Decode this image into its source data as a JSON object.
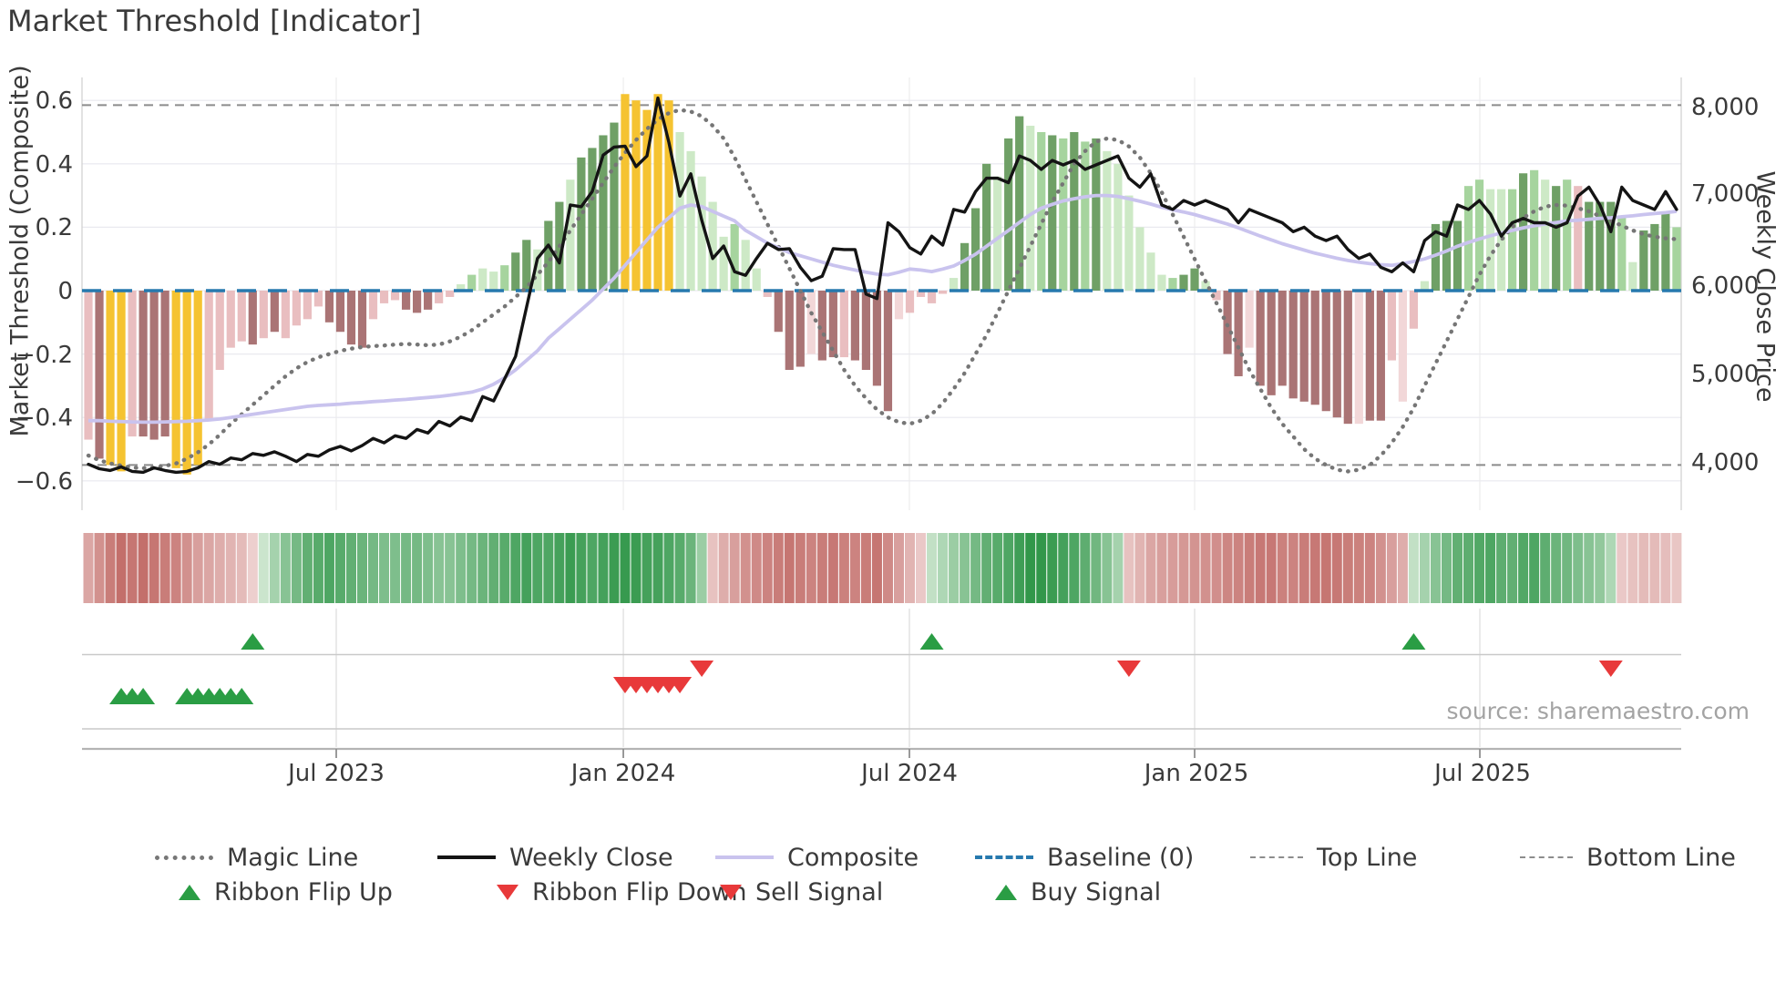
{
  "title": "Market Threshold [Indicator]",
  "source": "source: sharemaestro.com",
  "axes": {
    "left_label": "Market Threshold (Composite)",
    "right_label": "Weekly Close Price",
    "left_ticks": [
      "0.6",
      "0.4",
      "0.2",
      "0",
      "−0.2",
      "−0.4",
      "−0.6"
    ],
    "right_ticks": [
      "8,000",
      "7,000",
      "6,000",
      "5,000",
      "4,000"
    ],
    "x_ticks": [
      "Jul 2023",
      "Jan 2024",
      "Jul 2024",
      "Jan 2025",
      "Jul 2025"
    ]
  },
  "legend": {
    "magic_line": "Magic Line",
    "weekly_close": "Weekly Close",
    "composite": "Composite",
    "baseline": "Baseline (0)",
    "top_line": "Top Line",
    "bottom_line": "Bottom Line",
    "ribbon_flip_up": "Ribbon Flip Up",
    "ribbon_flip_down": "Ribbon Flip Down",
    "sell_signal": "Sell Signal",
    "buy_signal": "Buy Signal"
  },
  "colors": {
    "weekly_close": "#141414",
    "composite": "#c9c3ee",
    "magic_line": "#767676",
    "baseline": "#2679ae",
    "ref_dashed": "#8c8c8c",
    "buy_green": "#2a9d44",
    "sell_red": "#e8393a",
    "bar_palette": {
      "p": "#e9bec0",
      "d": "#aa7475",
      "y": "#f5c331",
      "P": "#f2d7d8",
      "g": "#6fa066",
      "l": "#a6d49e",
      "L": "#cde9c6"
    },
    "ribbon_green_strong": "#289242",
    "ribbon_red_strong": "#ba5a56"
  },
  "chart_data": {
    "type": "combo-bar-line-weekly",
    "weeks_n": 146,
    "x_tick_labels": [
      "Jul 2023",
      "Jan 2024",
      "Jul 2024",
      "Jan 2025",
      "Jul 2025"
    ],
    "x_tick_weeks": [
      22.63,
      48.84,
      74.96,
      101.0,
      127.04
    ],
    "ylim_left": [
      -0.65,
      0.68
    ],
    "right_axis_ticks": [
      8000,
      7000,
      6000,
      5000,
      4000
    ],
    "reference_lines": {
      "baseline": 0,
      "top_line": 0.585,
      "bottom_line": -0.55
    },
    "bars": {
      "name": "Market Threshold composite histogram",
      "values": [
        -0.47,
        -0.53,
        -0.55,
        -0.57,
        -0.46,
        -0.46,
        -0.47,
        -0.46,
        -0.56,
        -0.58,
        -0.55,
        -0.41,
        -0.25,
        -0.18,
        -0.16,
        -0.17,
        -0.15,
        -0.13,
        -0.15,
        -0.11,
        -0.09,
        -0.05,
        -0.1,
        -0.13,
        -0.17,
        -0.18,
        -0.09,
        -0.04,
        -0.03,
        -0.06,
        -0.07,
        -0.06,
        -0.04,
        -0.02,
        0.02,
        0.05,
        0.07,
        0.06,
        0.08,
        0.12,
        0.16,
        0.13,
        0.22,
        0.28,
        0.35,
        0.42,
        0.45,
        0.49,
        0.53,
        0.62,
        0.6,
        0.57,
        0.62,
        0.6,
        0.5,
        0.44,
        0.36,
        0.28,
        0.17,
        0.21,
        0.16,
        0.07,
        -0.02,
        -0.13,
        -0.25,
        -0.24,
        -0.2,
        -0.22,
        -0.21,
        -0.21,
        -0.22,
        -0.25,
        -0.3,
        -0.38,
        -0.09,
        -0.07,
        -0.02,
        -0.04,
        -0.01,
        0.04,
        0.15,
        0.26,
        0.4,
        0.36,
        0.48,
        0.55,
        0.52,
        0.5,
        0.49,
        0.48,
        0.5,
        0.47,
        0.48,
        0.44,
        0.4,
        0.3,
        0.2,
        0.12,
        0.05,
        0.04,
        0.05,
        0.07,
        0.03,
        -0.03,
        -0.2,
        -0.27,
        -0.18,
        -0.3,
        -0.33,
        -0.3,
        -0.34,
        -0.35,
        -0.36,
        -0.38,
        -0.4,
        -0.42,
        -0.42,
        -0.41,
        -0.41,
        -0.22,
        -0.35,
        -0.12,
        0.03,
        0.21,
        0.22,
        0.22,
        0.33,
        0.35,
        0.32,
        0.32,
        0.32,
        0.37,
        0.38,
        0.35,
        0.33,
        0.35,
        0.33,
        0.28,
        0.28,
        0.28,
        0.23,
        0.09,
        0.19,
        0.21,
        0.25,
        0.2
      ],
      "color_codes": "pdyypdddyyyppppdpdppppddddpppdddppLlLLlggLggLggggyyyyyLLLLLlLLpdddPddpddddPppppLgggLggLlglglgLLLLLLlggLpddPdddddddddPddpPpLgggllLLlglLglJggglLgggl"
    },
    "lines": {
      "weekly_close_price": [
        3990,
        3940,
        3920,
        3960,
        3910,
        3900,
        3950,
        3920,
        3900,
        3910,
        3950,
        4020,
        3990,
        4060,
        4040,
        4110,
        4090,
        4130,
        4080,
        4020,
        4100,
        4080,
        4150,
        4190,
        4140,
        4200,
        4280,
        4230,
        4310,
        4280,
        4380,
        4340,
        4470,
        4420,
        4520,
        4480,
        4750,
        4700,
        4950,
        5200,
        5750,
        6300,
        6450,
        6250,
        6900,
        6880,
        7050,
        7460,
        7550,
        7560,
        7330,
        7450,
        8100,
        7600,
        7000,
        7250,
        6730,
        6300,
        6440,
        6150,
        6110,
        6300,
        6470,
        6400,
        6410,
        6200,
        6050,
        6100,
        6410,
        6400,
        6400,
        5900,
        5850,
        6700,
        6600,
        6420,
        6350,
        6550,
        6450,
        6850,
        6820,
        7050,
        7200,
        7200,
        7150,
        7450,
        7400,
        7300,
        7400,
        7350,
        7400,
        7300,
        7350,
        7400,
        7450,
        7200,
        7100,
        7250,
        6900,
        6850,
        6950,
        6900,
        6950,
        6900,
        6850,
        6700,
        6850,
        6800,
        6750,
        6700,
        6600,
        6650,
        6550,
        6500,
        6550,
        6400,
        6300,
        6350,
        6200,
        6150,
        6250,
        6150,
        6500,
        6600,
        6550,
        6900,
        6850,
        6950,
        6800,
        6550,
        6700,
        6750,
        6700,
        6700,
        6650,
        6700,
        7000,
        7100,
        6900,
        6600,
        7100,
        6950,
        6900,
        6850,
        7050,
        6850
      ],
      "composite": [
        -0.41,
        -0.41,
        -0.412,
        -0.413,
        -0.414,
        -0.415,
        -0.415,
        -0.414,
        -0.413,
        -0.412,
        -0.41,
        -0.408,
        -0.405,
        -0.4,
        -0.395,
        -0.39,
        -0.385,
        -0.38,
        -0.375,
        -0.37,
        -0.365,
        -0.362,
        -0.36,
        -0.358,
        -0.355,
        -0.353,
        -0.35,
        -0.348,
        -0.345,
        -0.343,
        -0.34,
        -0.337,
        -0.334,
        -0.33,
        -0.325,
        -0.32,
        -0.31,
        -0.295,
        -0.275,
        -0.25,
        -0.22,
        -0.19,
        -0.15,
        -0.12,
        -0.09,
        -0.06,
        -0.03,
        0.005,
        0.04,
        0.08,
        0.12,
        0.16,
        0.2,
        0.23,
        0.26,
        0.27,
        0.265,
        0.25,
        0.235,
        0.22,
        0.19,
        0.17,
        0.15,
        0.135,
        0.12,
        0.11,
        0.1,
        0.09,
        0.08,
        0.072,
        0.065,
        0.058,
        0.052,
        0.05,
        0.058,
        0.068,
        0.065,
        0.06,
        0.068,
        0.078,
        0.095,
        0.115,
        0.14,
        0.165,
        0.19,
        0.215,
        0.24,
        0.26,
        0.272,
        0.283,
        0.29,
        0.296,
        0.3,
        0.3,
        0.297,
        0.29,
        0.282,
        0.273,
        0.263,
        0.255,
        0.248,
        0.24,
        0.23,
        0.22,
        0.21,
        0.198,
        0.185,
        0.172,
        0.16,
        0.148,
        0.138,
        0.128,
        0.118,
        0.11,
        0.102,
        0.095,
        0.09,
        0.085,
        0.082,
        0.08,
        0.085,
        0.092,
        0.1,
        0.112,
        0.125,
        0.14,
        0.152,
        0.163,
        0.173,
        0.182,
        0.19,
        0.198,
        0.205,
        0.21,
        0.215,
        0.22,
        0.222,
        0.225,
        0.228,
        0.23,
        0.233,
        0.236,
        0.24,
        0.243,
        0.246,
        0.25
      ],
      "magic_line": [
        -0.52,
        -0.535,
        -0.545,
        -0.552,
        -0.558,
        -0.56,
        -0.558,
        -0.553,
        -0.545,
        -0.53,
        -0.51,
        -0.485,
        -0.455,
        -0.42,
        -0.39,
        -0.36,
        -0.33,
        -0.3,
        -0.27,
        -0.245,
        -0.225,
        -0.21,
        -0.2,
        -0.19,
        -0.183,
        -0.178,
        -0.175,
        -0.173,
        -0.17,
        -0.168,
        -0.17,
        -0.172,
        -0.17,
        -0.16,
        -0.145,
        -0.125,
        -0.1,
        -0.075,
        -0.05,
        -0.02,
        0.01,
        0.05,
        0.09,
        0.14,
        0.19,
        0.24,
        0.29,
        0.34,
        0.39,
        0.435,
        0.475,
        0.51,
        0.54,
        0.56,
        0.57,
        0.565,
        0.55,
        0.52,
        0.48,
        0.42,
        0.35,
        0.28,
        0.21,
        0.14,
        0.07,
        0.0,
        -0.07,
        -0.13,
        -0.19,
        -0.25,
        -0.3,
        -0.34,
        -0.375,
        -0.4,
        -0.415,
        -0.42,
        -0.41,
        -0.39,
        -0.355,
        -0.31,
        -0.26,
        -0.2,
        -0.14,
        -0.07,
        0.0,
        0.07,
        0.14,
        0.21,
        0.28,
        0.34,
        0.4,
        0.44,
        0.47,
        0.48,
        0.475,
        0.455,
        0.42,
        0.37,
        0.31,
        0.24,
        0.17,
        0.1,
        0.03,
        -0.04,
        -0.11,
        -0.18,
        -0.25,
        -0.31,
        -0.37,
        -0.42,
        -0.46,
        -0.5,
        -0.53,
        -0.55,
        -0.565,
        -0.57,
        -0.565,
        -0.55,
        -0.52,
        -0.48,
        -0.43,
        -0.37,
        -0.3,
        -0.23,
        -0.16,
        -0.09,
        -0.02,
        0.05,
        0.11,
        0.16,
        0.2,
        0.23,
        0.25,
        0.265,
        0.27,
        0.268,
        0.26,
        0.25,
        0.235,
        0.22,
        0.205,
        0.19,
        0.178,
        0.17,
        0.165,
        0.162
      ]
    },
    "ribbon": [
      -0.45,
      -0.6,
      -0.75,
      -0.85,
      -0.8,
      -0.85,
      -0.8,
      -0.75,
      -0.7,
      -0.6,
      -0.5,
      -0.45,
      -0.4,
      -0.35,
      -0.3,
      -0.15,
      0.15,
      0.35,
      0.5,
      0.6,
      0.7,
      0.75,
      0.8,
      0.75,
      0.7,
      0.65,
      0.6,
      0.55,
      0.55,
      0.6,
      0.6,
      0.55,
      0.5,
      0.5,
      0.55,
      0.6,
      0.65,
      0.7,
      0.75,
      0.8,
      0.85,
      0.8,
      0.8,
      0.85,
      0.9,
      0.85,
      0.8,
      0.85,
      0.9,
      0.92,
      0.9,
      0.85,
      0.85,
      0.8,
      0.75,
      0.65,
      0.4,
      -0.25,
      -0.4,
      -0.5,
      -0.6,
      -0.65,
      -0.7,
      -0.75,
      -0.8,
      -0.75,
      -0.7,
      -0.75,
      -0.78,
      -0.72,
      -0.7,
      -0.75,
      -0.8,
      -0.65,
      -0.5,
      -0.35,
      -0.2,
      0.2,
      0.3,
      0.4,
      0.5,
      0.6,
      0.7,
      0.75,
      0.8,
      0.88,
      0.95,
      0.95,
      0.9,
      0.85,
      0.8,
      0.72,
      0.62,
      0.5,
      0.35,
      -0.25,
      -0.35,
      -0.45,
      -0.5,
      -0.52,
      -0.55,
      -0.58,
      -0.6,
      -0.62,
      -0.68,
      -0.7,
      -0.75,
      -0.78,
      -0.78,
      -0.72,
      -0.7,
      -0.75,
      -0.78,
      -0.8,
      -0.78,
      -0.75,
      -0.72,
      -0.7,
      -0.6,
      -0.5,
      -0.4,
      0.2,
      0.35,
      0.5,
      0.6,
      0.7,
      0.72,
      0.78,
      0.8,
      0.72,
      0.7,
      0.78,
      0.8,
      0.72,
      0.65,
      0.62,
      0.55,
      0.5,
      0.45,
      0.3,
      -0.2,
      -0.25,
      -0.3,
      -0.3,
      -0.28,
      -0.22
    ],
    "signals": {
      "ribbon_flip_up_weeks": [
        15,
        77,
        121
      ],
      "ribbon_flip_down_weeks": [
        56,
        95,
        139
      ],
      "buy_signal_weeks": [
        3,
        4,
        5,
        9,
        10,
        11,
        12,
        13,
        14
      ],
      "sell_signal_weeks": [
        49,
        50,
        51,
        52,
        53,
        54
      ]
    }
  }
}
